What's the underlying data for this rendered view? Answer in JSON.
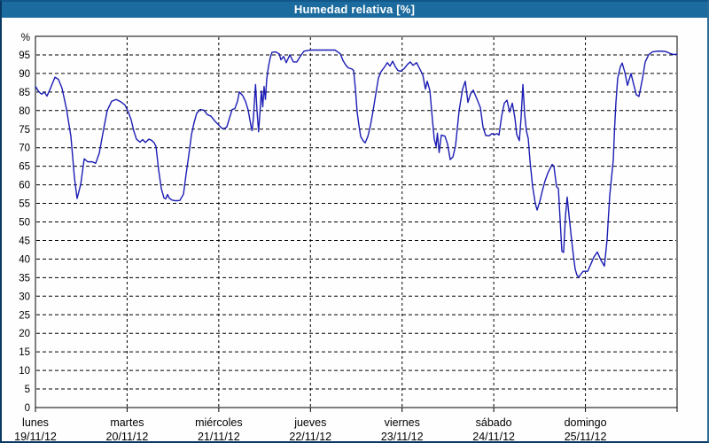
{
  "header": {
    "title": "Humedad relativa [%]"
  },
  "colors": {
    "header_bg": "#1b6b9e",
    "title_text": "#ffffff",
    "line": "#1c1cb4",
    "grid": "#000000",
    "frame": "#000000",
    "background": "#fdfefd"
  },
  "chart_data": {
    "type": "line",
    "title": "Humedad relativa [%]",
    "unit_label": "%",
    "ylim": [
      0,
      100
    ],
    "yticks": [
      0,
      5,
      10,
      15,
      20,
      25,
      30,
      35,
      40,
      45,
      50,
      55,
      60,
      65,
      70,
      75,
      80,
      85,
      90,
      95
    ],
    "grid": "dashed",
    "legend_position": "none",
    "x_range_days": [
      0,
      7
    ],
    "x_axis_days": [
      {
        "name": "lunes",
        "date": "19/11/12"
      },
      {
        "name": "martes",
        "date": "20/11/12"
      },
      {
        "name": "miércoles",
        "date": "21/11/12"
      },
      {
        "name": "jueves",
        "date": "22/11/12"
      },
      {
        "name": "viernes",
        "date": "23/11/12"
      },
      {
        "name": "sábado",
        "date": "24/11/12"
      },
      {
        "name": "domingo",
        "date": "25/11/12"
      }
    ],
    "series": [
      {
        "name": "Humedad relativa",
        "color": "#1c1cb4",
        "points": [
          [
            0.0,
            86.5
          ],
          [
            0.039,
            85.0
          ],
          [
            0.068,
            84.4
          ],
          [
            0.097,
            85.0
          ],
          [
            0.126,
            83.9
          ],
          [
            0.164,
            86.0
          ],
          [
            0.213,
            89.0
          ],
          [
            0.251,
            88.4
          ],
          [
            0.29,
            86.0
          ],
          [
            0.338,
            80.5
          ],
          [
            0.387,
            73.0
          ],
          [
            0.425,
            62.0
          ],
          [
            0.454,
            56.3
          ],
          [
            0.493,
            60.0
          ],
          [
            0.532,
            67.0
          ],
          [
            0.57,
            66.2
          ],
          [
            0.619,
            66.2
          ],
          [
            0.657,
            65.8
          ],
          [
            0.696,
            68.5
          ],
          [
            0.744,
            75.0
          ],
          [
            0.783,
            80.0
          ],
          [
            0.831,
            82.5
          ],
          [
            0.88,
            83.0
          ],
          [
            0.928,
            82.4
          ],
          [
            0.977,
            81.5
          ],
          [
            1.015,
            79.5
          ],
          [
            1.044,
            77.5
          ],
          [
            1.073,
            74.5
          ],
          [
            1.102,
            72.3
          ],
          [
            1.141,
            71.5
          ],
          [
            1.17,
            72.2
          ],
          [
            1.199,
            71.4
          ],
          [
            1.237,
            72.3
          ],
          [
            1.266,
            72.0
          ],
          [
            1.296,
            71.3
          ],
          [
            1.315,
            70.3
          ],
          [
            1.344,
            64.0
          ],
          [
            1.373,
            59.0
          ],
          [
            1.402,
            56.5
          ],
          [
            1.421,
            56.2
          ],
          [
            1.441,
            57.4
          ],
          [
            1.46,
            56.4
          ],
          [
            1.489,
            55.9
          ],
          [
            1.528,
            55.7
          ],
          [
            1.576,
            55.8
          ],
          [
            1.615,
            57.5
          ],
          [
            1.644,
            63.0
          ],
          [
            1.673,
            68.0
          ],
          [
            1.702,
            73.5
          ],
          [
            1.731,
            76.8
          ],
          [
            1.76,
            79.3
          ],
          [
            1.798,
            80.3
          ],
          [
            1.837,
            80.1
          ],
          [
            1.876,
            78.9
          ],
          [
            1.914,
            78.5
          ],
          [
            1.953,
            77.3
          ],
          [
            1.992,
            76.3
          ],
          [
            2.03,
            75.3
          ],
          [
            2.059,
            75.1
          ],
          [
            2.088,
            75.6
          ],
          [
            2.117,
            78.0
          ],
          [
            2.146,
            80.3
          ],
          [
            2.175,
            80.5
          ],
          [
            2.204,
            82.5
          ],
          [
            2.224,
            85.0
          ],
          [
            2.262,
            84.0
          ],
          [
            2.291,
            82.5
          ],
          [
            2.32,
            80.2
          ],
          [
            2.354,
            75.5
          ],
          [
            2.364,
            74.6
          ],
          [
            2.378,
            78.0
          ],
          [
            2.401,
            87.0
          ],
          [
            2.417,
            80.0
          ],
          [
            2.434,
            74.3
          ],
          [
            2.451,
            80.0
          ],
          [
            2.465,
            85.3
          ],
          [
            2.48,
            81.0
          ],
          [
            2.494,
            86.5
          ],
          [
            2.509,
            83.0
          ],
          [
            2.523,
            88.5
          ],
          [
            2.543,
            92.0
          ],
          [
            2.562,
            94.3
          ],
          [
            2.581,
            95.7
          ],
          [
            2.62,
            95.8
          ],
          [
            2.659,
            95.3
          ],
          [
            2.678,
            93.7
          ],
          [
            2.707,
            94.6
          ],
          [
            2.736,
            92.9
          ],
          [
            2.775,
            95.0
          ],
          [
            2.814,
            93.1
          ],
          [
            2.852,
            93.1
          ],
          [
            2.891,
            94.7
          ],
          [
            2.93,
            96.0
          ],
          [
            2.969,
            96.2
          ],
          [
            3.017,
            96.3
          ],
          [
            3.142,
            96.3
          ],
          [
            3.268,
            96.3
          ],
          [
            3.326,
            95.3
          ],
          [
            3.355,
            93.5
          ],
          [
            3.384,
            92.3
          ],
          [
            3.413,
            91.5
          ],
          [
            3.452,
            91.2
          ],
          [
            3.471,
            90.8
          ],
          [
            3.49,
            86.0
          ],
          [
            3.51,
            79.5
          ],
          [
            3.529,
            76.0
          ],
          [
            3.548,
            73.0
          ],
          [
            3.577,
            71.8
          ],
          [
            3.597,
            71.3
          ],
          [
            3.626,
            73.0
          ],
          [
            3.655,
            76.0
          ],
          [
            3.684,
            80.0
          ],
          [
            3.713,
            84.5
          ],
          [
            3.742,
            88.8
          ],
          [
            3.771,
            90.5
          ],
          [
            3.81,
            91.8
          ],
          [
            3.839,
            92.9
          ],
          [
            3.868,
            92.0
          ],
          [
            3.897,
            93.3
          ],
          [
            3.926,
            91.8
          ],
          [
            3.955,
            90.8
          ],
          [
            3.984,
            90.6
          ],
          [
            4.022,
            91.3
          ],
          [
            4.061,
            92.5
          ],
          [
            4.09,
            93.1
          ],
          [
            4.119,
            92.2
          ],
          [
            4.158,
            92.9
          ],
          [
            4.197,
            91.0
          ],
          [
            4.226,
            89.6
          ],
          [
            4.255,
            85.8
          ],
          [
            4.274,
            87.9
          ],
          [
            4.303,
            85.4
          ],
          [
            4.332,
            77.2
          ],
          [
            4.351,
            72.3
          ],
          [
            4.371,
            70.3
          ],
          [
            4.385,
            73.9
          ],
          [
            4.404,
            68.7
          ],
          [
            4.428,
            73.4
          ],
          [
            4.467,
            73.1
          ],
          [
            4.496,
            71.0
          ],
          [
            4.525,
            66.8
          ],
          [
            4.554,
            67.5
          ],
          [
            4.583,
            70.5
          ],
          [
            4.622,
            80.0
          ],
          [
            4.66,
            85.8
          ],
          [
            4.689,
            87.9
          ],
          [
            4.718,
            82.2
          ],
          [
            4.747,
            84.5
          ],
          [
            4.776,
            85.5
          ],
          [
            4.815,
            83.2
          ],
          [
            4.854,
            80.8
          ],
          [
            4.883,
            75.5
          ],
          [
            4.912,
            73.3
          ],
          [
            4.95,
            73.2
          ],
          [
            4.979,
            73.8
          ],
          [
            5.008,
            73.5
          ],
          [
            5.037,
            73.8
          ],
          [
            5.057,
            73.4
          ],
          [
            5.086,
            78.5
          ],
          [
            5.115,
            82.0
          ],
          [
            5.144,
            82.8
          ],
          [
            5.173,
            79.6
          ],
          [
            5.202,
            82.0
          ],
          [
            5.231,
            78.0
          ],
          [
            5.25,
            73.6
          ],
          [
            5.279,
            71.9
          ],
          [
            5.298,
            78.0
          ],
          [
            5.318,
            87.0
          ],
          [
            5.337,
            79.0
          ],
          [
            5.356,
            74.5
          ],
          [
            5.376,
            72.5
          ],
          [
            5.395,
            66.5
          ],
          [
            5.424,
            59.5
          ],
          [
            5.453,
            55.0
          ],
          [
            5.473,
            53.2
          ],
          [
            5.502,
            55.5
          ],
          [
            5.531,
            58.5
          ],
          [
            5.56,
            61.1
          ],
          [
            5.589,
            63.1
          ],
          [
            5.637,
            65.5
          ],
          [
            5.656,
            65.0
          ],
          [
            5.685,
            59.5
          ],
          [
            5.705,
            59.0
          ],
          [
            5.724,
            50.5
          ],
          [
            5.743,
            42.1
          ],
          [
            5.762,
            41.8
          ],
          [
            5.782,
            51.5
          ],
          [
            5.801,
            56.7
          ],
          [
            5.82,
            52.0
          ],
          [
            5.849,
            45.2
          ],
          [
            5.869,
            40.9
          ],
          [
            5.888,
            37.3
          ],
          [
            5.907,
            35.7
          ],
          [
            5.927,
            35.1
          ],
          [
            5.946,
            35.8
          ],
          [
            5.975,
            36.7
          ],
          [
            6.024,
            36.7
          ],
          [
            6.062,
            38.8
          ],
          [
            6.091,
            40.5
          ],
          [
            6.13,
            41.9
          ],
          [
            6.169,
            39.7
          ],
          [
            6.207,
            38.1
          ],
          [
            6.236,
            45.2
          ],
          [
            6.265,
            57.1
          ],
          [
            6.304,
            66.7
          ],
          [
            6.318,
            75.2
          ],
          [
            6.333,
            82.3
          ],
          [
            6.352,
            88.7
          ],
          [
            6.381,
            91.8
          ],
          [
            6.401,
            92.8
          ],
          [
            6.43,
            90.3
          ],
          [
            6.459,
            86.8
          ],
          [
            6.497,
            90.0
          ],
          [
            6.526,
            87.1
          ],
          [
            6.555,
            84.3
          ],
          [
            6.584,
            83.8
          ],
          [
            6.623,
            88.7
          ],
          [
            6.652,
            93.1
          ],
          [
            6.691,
            95.1
          ],
          [
            6.73,
            95.8
          ],
          [
            6.778,
            96.0
          ],
          [
            6.826,
            96.0
          ],
          [
            6.875,
            95.9
          ],
          [
            6.923,
            95.4
          ],
          [
            6.962,
            95.1
          ],
          [
            7.0,
            95.2
          ]
        ]
      }
    ]
  }
}
